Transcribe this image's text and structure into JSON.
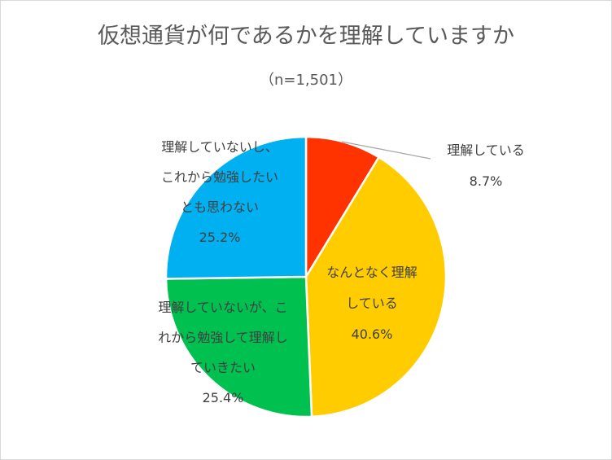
{
  "chart_data": {
    "type": "pie",
    "title": "仮想通貨が何であるかを理解していますか",
    "subtitle": "（n=1,501）",
    "slices": [
      {
        "label_lines": [
          "理解している"
        ],
        "value_label": "8.7%",
        "value": 8.7,
        "color": "#ff3300"
      },
      {
        "label_lines": [
          "なんとなく理解",
          "している"
        ],
        "value_label": "40.6%",
        "value": 40.6,
        "color": "#ffcc00"
      },
      {
        "label_lines": [
          "理解していないが、こ",
          "れから勉強して理解し",
          "ていきたい"
        ],
        "value_label": "25.4%",
        "value": 25.4,
        "color": "#00c050"
      },
      {
        "label_lines": [
          "理解していないし、",
          "これから勉強したい",
          "とも思わない"
        ],
        "value_label": "25.2%",
        "value": 25.2,
        "color": "#00b0f0"
      }
    ]
  }
}
